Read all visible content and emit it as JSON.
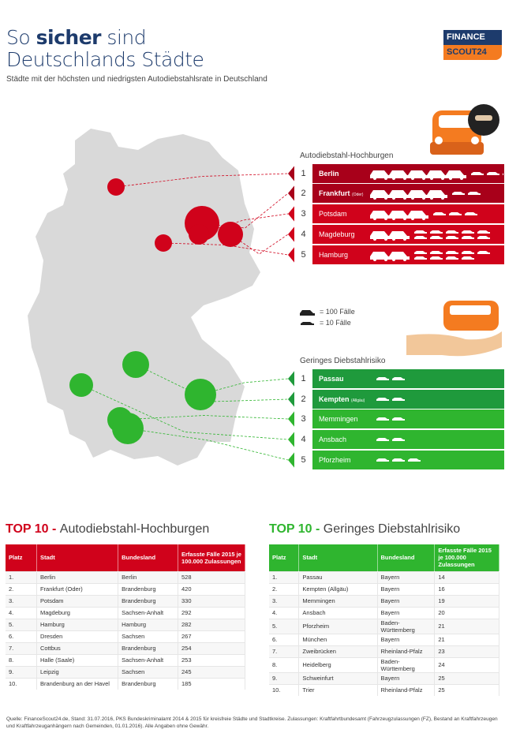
{
  "header": {
    "title_pre": "So ",
    "title_bold": "sicher",
    "title_post": " sind",
    "title_line2": "Deutschlands Städte",
    "subtitle": "Städte mit der höchsten und niedrigsten Autodiebstahlsrate in Deutschland"
  },
  "logo": {
    "line1": "FINANCE",
    "line2": "SCOUT24"
  },
  "colors": {
    "red": "#d0021b",
    "dark_red": "#a8001a",
    "green": "#2fb52f",
    "dark_green": "#1f9a3c",
    "navy": "#1d3b6c",
    "orange": "#f47b20",
    "map": "#d9d9d9"
  },
  "legend": {
    "big": "= 100 Fälle",
    "small": "= 10 Fälle"
  },
  "chart_data": {
    "type": "table",
    "high": {
      "heading": "Autodiebstahl-Hochburgen",
      "items": [
        {
          "rank": "1",
          "city": "Berlin",
          "sub": "",
          "value": 528
        },
        {
          "rank": "2",
          "city": "Frankfurt",
          "sub": "(Oder)",
          "value": 420
        },
        {
          "rank": "3",
          "city": "Potsdam",
          "sub": "",
          "value": 330
        },
        {
          "rank": "4",
          "city": "Magdeburg",
          "sub": "",
          "value": 292
        },
        {
          "rank": "5",
          "city": "Hamburg",
          "sub": "",
          "value": 282
        }
      ]
    },
    "low": {
      "heading": "Geringes Diebstahlrisiko",
      "items": [
        {
          "rank": "1",
          "city": "Passau",
          "sub": "",
          "value": 14
        },
        {
          "rank": "2",
          "city": "Kempten",
          "sub": "(Allgäu)",
          "value": 16
        },
        {
          "rank": "3",
          "city": "Memmingen",
          "sub": "",
          "value": 19
        },
        {
          "rank": "4",
          "city": "Ansbach",
          "sub": "",
          "value": 20
        },
        {
          "rank": "5",
          "city": "Pforzheim",
          "sub": "",
          "value": 21
        }
      ]
    },
    "table_high": {
      "title_a": "TOP 10 - ",
      "title_b": "Autodiebstahl-Hochburgen",
      "columns": [
        "Platz",
        "Stadt",
        "Bundesland",
        "Erfasste Fälle 2015 je 100.000 Zulassungen"
      ],
      "rows": [
        [
          "1.",
          "Berlin",
          "Berlin",
          "528"
        ],
        [
          "2.",
          "Frankfurt (Oder)",
          "Brandenburg",
          "420"
        ],
        [
          "3.",
          "Potsdam",
          "Brandenburg",
          "330"
        ],
        [
          "4.",
          "Magdeburg",
          "Sachsen-Anhalt",
          "292"
        ],
        [
          "5.",
          "Hamburg",
          "Hamburg",
          "282"
        ],
        [
          "6.",
          "Dresden",
          "Sachsen",
          "267"
        ],
        [
          "7.",
          "Cottbus",
          "Brandenburg",
          "254"
        ],
        [
          "8.",
          "Halle (Saale)",
          "Sachsen-Anhalt",
          "253"
        ],
        [
          "9.",
          "Leipzig",
          "Sachsen",
          "245"
        ],
        [
          "10.",
          "Brandenburg an der Havel",
          "Brandenburg",
          "185"
        ]
      ]
    },
    "table_low": {
      "title_a": "TOP 10 - ",
      "title_b": "Geringes Diebstahlrisiko",
      "columns": [
        "Platz",
        "Stadt",
        "Bundesland",
        "Erfasste Fälle 2015 je 100.000 Zulassungen"
      ],
      "rows": [
        [
          "1.",
          "Passau",
          "Bayern",
          "14"
        ],
        [
          "2.",
          "Kempten (Allgäu)",
          "Bayern",
          "16"
        ],
        [
          "3.",
          "Memmingen",
          "Bayern",
          "19"
        ],
        [
          "4.",
          "Ansbach",
          "Bayern",
          "20"
        ],
        [
          "5.",
          "Pforzheim",
          "Baden-Württemberg",
          "21"
        ],
        [
          "6.",
          "München",
          "Bayern",
          "21"
        ],
        [
          "7.",
          "Zweibrücken",
          "Rheinland-Pfalz",
          "23"
        ],
        [
          "8.",
          "Heidelberg",
          "Baden-Württemberg",
          "24"
        ],
        [
          "9.",
          "Schweinfurt",
          "Bayern",
          "25"
        ],
        [
          "10.",
          "Trier",
          "Rheinland-Pfalz",
          "25"
        ]
      ]
    }
  },
  "footer": "Quelle: FinanceScout24.de, Stand: 31.07.2016, PKS Bundeskriminalamt 2014 & 2015 für kreisfreie Städte und Stadtkreise. Zulassungen: Kraftfahrtbundesamt (Fahrzeugzulassungen (FZ), Bestand an Kraftfahrzeugen und Kraftfahrzeuganhängern nach Gemeinden, 01.01.2016). Alle Angaben ohne Gewähr."
}
